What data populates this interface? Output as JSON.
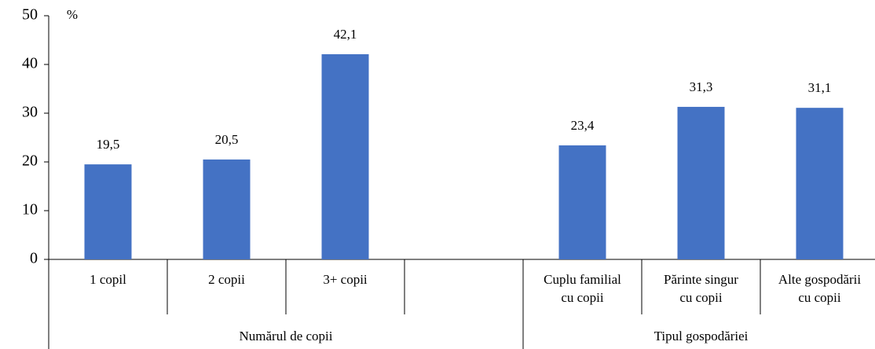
{
  "chart_data": {
    "type": "bar",
    "y_unit": "%",
    "categories": [
      [
        "1 copil"
      ],
      [
        "2 copii"
      ],
      [
        "3+ copii"
      ],
      null,
      [
        "Cuplu familial",
        "cu copii"
      ],
      [
        "Părinte singur",
        "cu copii"
      ],
      [
        "Alte gospodării",
        "cu copii"
      ]
    ],
    "values": [
      19.5,
      20.5,
      42.1,
      null,
      23.4,
      31.3,
      31.1
    ],
    "value_labels": [
      "19,5",
      "20,5",
      "42,1",
      null,
      "23,4",
      "31,3",
      "31,1"
    ],
    "groups": [
      {
        "label": "Numărul de copii",
        "span": 4
      },
      {
        "label": "Tipul gospodăriei",
        "span": 3
      }
    ],
    "color": "#4472c4",
    "ylim": [
      0,
      50
    ],
    "yticks": [
      0,
      10,
      20,
      30,
      40,
      50
    ]
  }
}
